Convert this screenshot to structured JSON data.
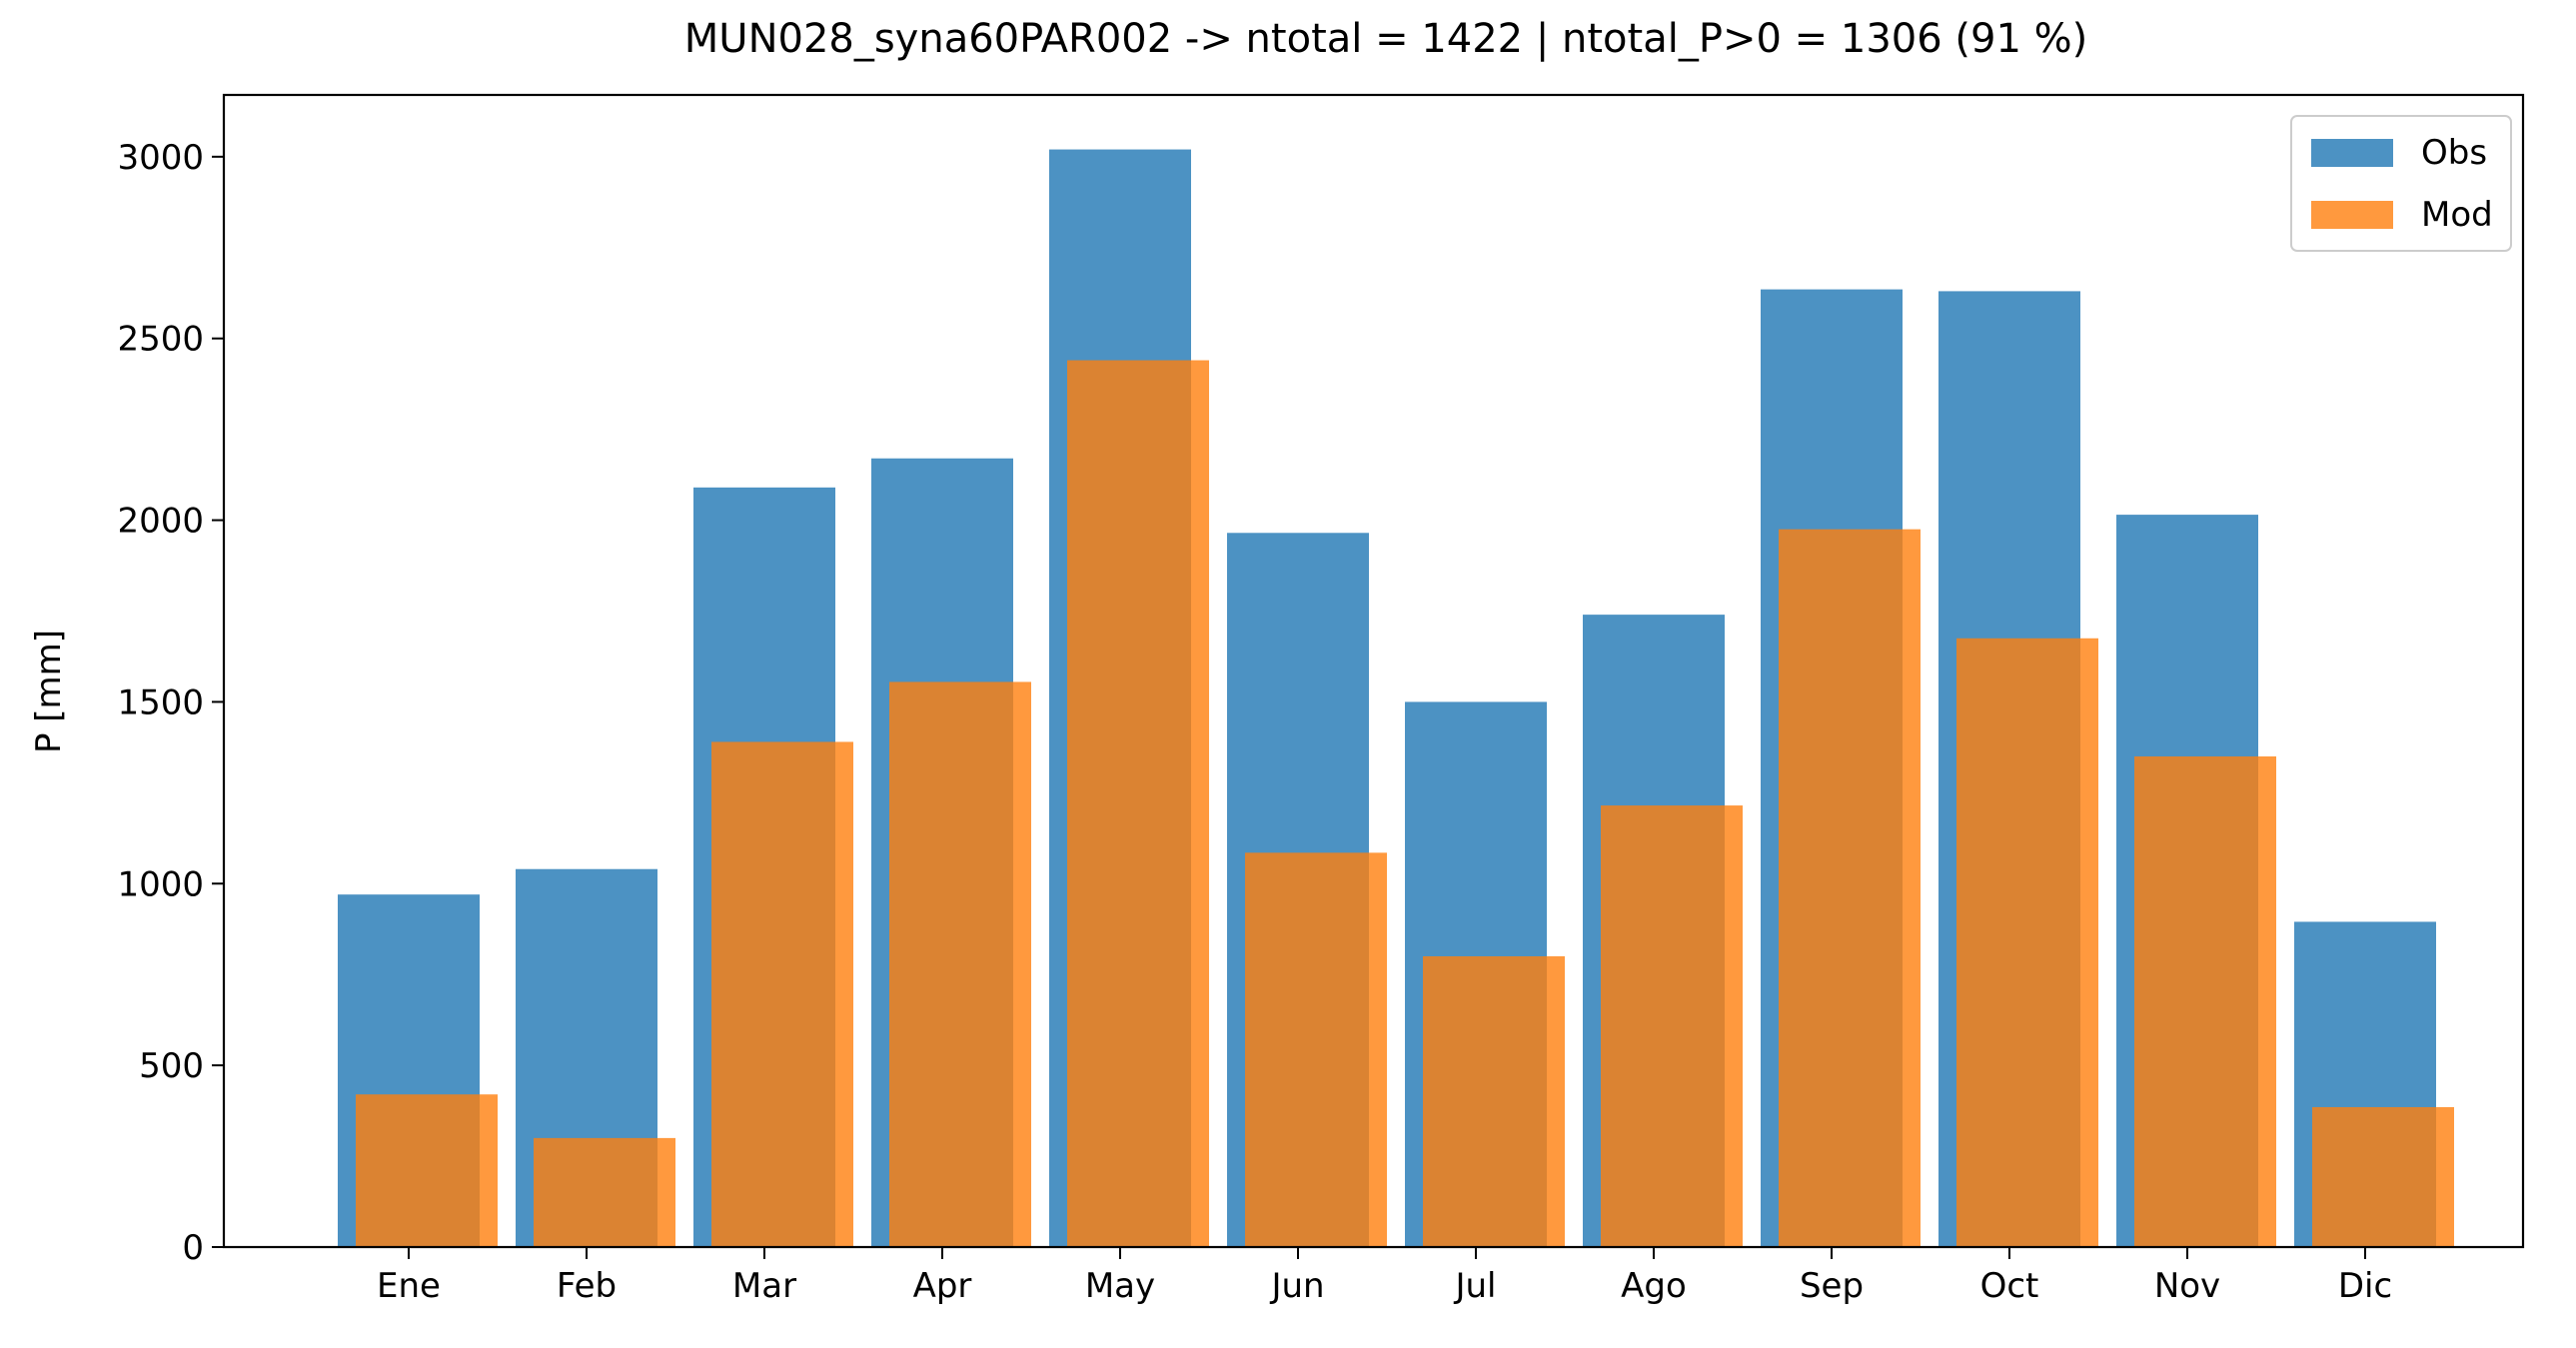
{
  "chart_data": {
    "type": "bar",
    "title": "MUN028_syna60PAR002 -> ntotal = 1422 | ntotal_P>0 = 1306 (91 %)",
    "xlabel": "",
    "ylabel": "P [mm]",
    "categories": [
      "Ene",
      "Feb",
      "Mar",
      "Apr",
      "May",
      "Jun",
      "Jul",
      "Ago",
      "Sep",
      "Oct",
      "Nov",
      "Dic"
    ],
    "series": [
      {
        "name": "Obs",
        "color": "#1f77b4",
        "values": [
          970,
          1040,
          2090,
          2170,
          3020,
          1965,
          1500,
          1740,
          2635,
          2630,
          2015,
          895
        ]
      },
      {
        "name": "Mod",
        "color": "#ff7f0e",
        "values": [
          420,
          300,
          1390,
          1555,
          2440,
          1085,
          800,
          1215,
          1975,
          1675,
          1350,
          385
        ]
      }
    ],
    "ylim": [
      0,
      3170
    ],
    "yticks": [
      0,
      500,
      1000,
      1500,
      2000,
      2500,
      3000
    ],
    "grid": false,
    "legend_position": "top-right"
  }
}
